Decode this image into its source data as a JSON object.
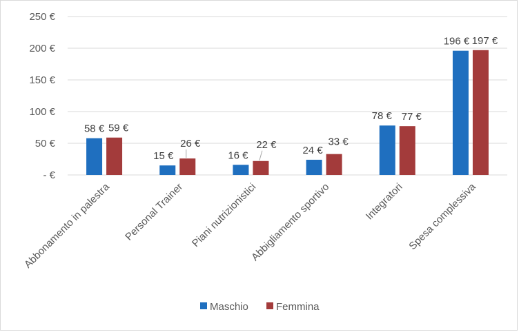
{
  "chart_data": {
    "type": "bar",
    "title": "",
    "xlabel": "",
    "ylabel": "",
    "categories": [
      "Abbonamento in palestra",
      "Personal Trainer",
      "Piani nutrizionistici",
      "Abbigliamento sportivo",
      "Integratori",
      "Spesa complessiva"
    ],
    "series": [
      {
        "name": "Maschio",
        "color": "#1f6fbf",
        "values": [
          58,
          15,
          16,
          24,
          78,
          196
        ],
        "labels": [
          "58 €",
          "15 €",
          "16 €",
          "24 €",
          "78 €",
          "196 €"
        ]
      },
      {
        "name": "Femmina",
        "color": "#a33b3b",
        "values": [
          59,
          26,
          22,
          33,
          77,
          197
        ],
        "labels": [
          "59 €",
          "26 €",
          "22 €",
          "33 €",
          "77 €",
          "197 €"
        ]
      }
    ],
    "ylim": [
      0,
      250
    ],
    "yticks": [
      0,
      50,
      100,
      150,
      200,
      250
    ],
    "ytick_labels": [
      "-  €",
      "50 €",
      "100 €",
      "150 €",
      "200 €",
      "250 €"
    ],
    "grid": true,
    "gridline_color": "#d9d9d9",
    "legend_position": "bottom"
  }
}
